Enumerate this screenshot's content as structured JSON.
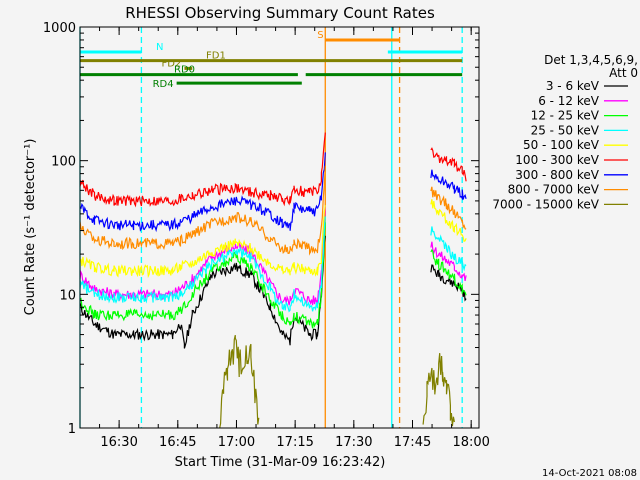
{
  "chart_data": {
    "type": "line",
    "title": "RHESSI Observing Summary Count Rates",
    "xlabel": "Start Time (31-Mar-09 16:23:42)",
    "ylabel": "Count Rate (s⁻¹ detector⁻¹)",
    "y_scale": "log",
    "ylim": [
      1,
      1000
    ],
    "xlim_minutes": [
      -3.7,
      98.3
    ],
    "x_ticks": [
      {
        "label": "16:30",
        "value": 6.3
      },
      {
        "label": "16:45",
        "value": 21.3
      },
      {
        "label": "17:00",
        "value": 36.3
      },
      {
        "label": "17:15",
        "value": 51.3
      },
      {
        "label": "17:30",
        "value": 66.3
      },
      {
        "label": "17:45",
        "value": 81.3
      },
      {
        "label": "18:00",
        "value": 96.3
      }
    ],
    "y_ticks": [
      {
        "label": "1",
        "value": 1
      },
      {
        "label": "10",
        "value": 10
      },
      {
        "label": "100",
        "value": 100
      },
      {
        "label": "1000",
        "value": 1000
      }
    ],
    "legend_header": [
      "Det 1,3,4,5,6,9,",
      "Att 0"
    ],
    "series": [
      {
        "name": "3 - 6 keV",
        "color": "#000000",
        "values": [
          [
            -3.7,
            8
          ],
          [
            0,
            6
          ],
          [
            5,
            5
          ],
          [
            10,
            5
          ],
          [
            15,
            5
          ],
          [
            20,
            5
          ],
          [
            22,
            6
          ],
          [
            23,
            4
          ],
          [
            25,
            7
          ],
          [
            30,
            14
          ],
          [
            36,
            16
          ],
          [
            40,
            14
          ],
          [
            45,
            8
          ],
          [
            48,
            5
          ],
          [
            50,
            4.5
          ],
          [
            51,
            7
          ],
          [
            55,
            5
          ],
          [
            57,
            5
          ],
          [
            58,
            10
          ],
          [
            59,
            30
          ]
        ],
        "values2": [
          [
            86,
            16
          ],
          [
            88,
            14
          ],
          [
            90,
            13
          ],
          [
            92,
            12
          ],
          [
            94,
            11
          ],
          [
            95,
            9
          ]
        ]
      },
      {
        "name": "6 - 12 keV",
        "color": "#ff00ff",
        "values": [
          [
            -3.7,
            14
          ],
          [
            0,
            11
          ],
          [
            5,
            10
          ],
          [
            10,
            10
          ],
          [
            15,
            10
          ],
          [
            20,
            10
          ],
          [
            22,
            11
          ],
          [
            25,
            13
          ],
          [
            30,
            19
          ],
          [
            36,
            23
          ],
          [
            40,
            21
          ],
          [
            45,
            12
          ],
          [
            48,
            9
          ],
          [
            50,
            9
          ],
          [
            51,
            11
          ],
          [
            55,
            9
          ],
          [
            57,
            9
          ],
          [
            58,
            15
          ],
          [
            59,
            45
          ]
        ],
        "values2": [
          [
            86,
            23
          ],
          [
            88,
            20
          ],
          [
            90,
            18
          ],
          [
            92,
            16
          ],
          [
            94,
            14
          ],
          [
            95,
            13
          ]
        ]
      },
      {
        "name": "12 - 25 keV",
        "color": "#00ff00",
        "values": [
          [
            -3.7,
            9
          ],
          [
            0,
            7
          ],
          [
            5,
            7
          ],
          [
            10,
            7
          ],
          [
            15,
            7
          ],
          [
            20,
            7
          ],
          [
            22,
            7.5
          ],
          [
            25,
            10
          ],
          [
            30,
            15
          ],
          [
            36,
            19
          ],
          [
            40,
            16
          ],
          [
            45,
            9
          ],
          [
            48,
            7
          ],
          [
            50,
            6
          ],
          [
            51,
            7
          ],
          [
            55,
            6
          ],
          [
            57,
            6
          ],
          [
            58,
            10
          ],
          [
            59,
            35
          ]
        ],
        "values2": [
          [
            86,
            20
          ],
          [
            88,
            17
          ],
          [
            90,
            15
          ],
          [
            92,
            13
          ],
          [
            94,
            11
          ],
          [
            95,
            10
          ]
        ]
      },
      {
        "name": "25 - 50 keV",
        "color": "#00ffff",
        "values": [
          [
            -3.7,
            12
          ],
          [
            0,
            10
          ],
          [
            5,
            9.5
          ],
          [
            10,
            9.5
          ],
          [
            15,
            9.5
          ],
          [
            20,
            9.5
          ],
          [
            22,
            10
          ],
          [
            25,
            12
          ],
          [
            30,
            17
          ],
          [
            36,
            21
          ],
          [
            40,
            19
          ],
          [
            45,
            11
          ],
          [
            48,
            8
          ],
          [
            50,
            8
          ],
          [
            51,
            10
          ],
          [
            55,
            8
          ],
          [
            57,
            8
          ],
          [
            58,
            12
          ],
          [
            59,
            40
          ]
        ],
        "values2": [
          [
            86,
            30
          ],
          [
            88,
            26
          ],
          [
            90,
            22
          ],
          [
            92,
            19
          ],
          [
            94,
            17
          ],
          [
            95,
            15
          ]
        ]
      },
      {
        "name": "50 - 100 keV",
        "color": "#ffff00",
        "values": [
          [
            -3.7,
            18
          ],
          [
            0,
            16
          ],
          [
            5,
            15
          ],
          [
            10,
            15
          ],
          [
            15,
            15
          ],
          [
            20,
            15
          ],
          [
            22,
            16
          ],
          [
            25,
            17
          ],
          [
            30,
            21
          ],
          [
            36,
            24
          ],
          [
            40,
            22
          ],
          [
            45,
            17
          ],
          [
            48,
            15
          ],
          [
            50,
            15
          ],
          [
            51,
            16
          ],
          [
            55,
            15
          ],
          [
            57,
            15
          ],
          [
            58,
            18
          ],
          [
            59,
            50
          ]
        ],
        "values2": [
          [
            86,
            48
          ],
          [
            88,
            42
          ],
          [
            90,
            36
          ],
          [
            92,
            32
          ],
          [
            94,
            28
          ],
          [
            95,
            26
          ]
        ]
      },
      {
        "name": "100 - 300 keV",
        "color": "#ff0000",
        "values": [
          [
            -3.7,
            70
          ],
          [
            0,
            55
          ],
          [
            5,
            50
          ],
          [
            10,
            50
          ],
          [
            15,
            50
          ],
          [
            20,
            50
          ],
          [
            22,
            52
          ],
          [
            25,
            55
          ],
          [
            30,
            60
          ],
          [
            36,
            63
          ],
          [
            40,
            58
          ],
          [
            45,
            55
          ],
          [
            48,
            52
          ],
          [
            50,
            50
          ],
          [
            51,
            60
          ],
          [
            55,
            58
          ],
          [
            57,
            58
          ],
          [
            58,
            75
          ],
          [
            59,
            150
          ]
        ],
        "values2": [
          [
            86,
            115
          ],
          [
            88,
            105
          ],
          [
            90,
            100
          ],
          [
            92,
            95
          ],
          [
            94,
            85
          ],
          [
            95,
            75
          ]
        ]
      },
      {
        "name": "300 - 800 keV",
        "color": "#0000ff",
        "values": [
          [
            -3.7,
            45
          ],
          [
            0,
            36
          ],
          [
            5,
            33
          ],
          [
            10,
            33
          ],
          [
            15,
            33
          ],
          [
            20,
            33
          ],
          [
            22,
            35
          ],
          [
            25,
            38
          ],
          [
            30,
            45
          ],
          [
            36,
            50
          ],
          [
            40,
            47
          ],
          [
            45,
            40
          ],
          [
            48,
            34
          ],
          [
            50,
            32
          ],
          [
            51,
            45
          ],
          [
            55,
            42
          ],
          [
            57,
            42
          ],
          [
            58,
            55
          ],
          [
            59,
            110
          ]
        ],
        "values2": [
          [
            86,
            80
          ],
          [
            88,
            72
          ],
          [
            90,
            68
          ],
          [
            92,
            62
          ],
          [
            94,
            56
          ],
          [
            95,
            50
          ]
        ]
      },
      {
        "name": "800 - 7000 keV",
        "color": "#ff8c00",
        "values": [
          [
            -3.7,
            32
          ],
          [
            0,
            26
          ],
          [
            5,
            24
          ],
          [
            10,
            24
          ],
          [
            15,
            24
          ],
          [
            20,
            24
          ],
          [
            22,
            25
          ],
          [
            25,
            28
          ],
          [
            30,
            34
          ],
          [
            36,
            38
          ],
          [
            40,
            35
          ],
          [
            45,
            26
          ],
          [
            48,
            22
          ],
          [
            50,
            21
          ],
          [
            51,
            24
          ],
          [
            55,
            22
          ],
          [
            57,
            22
          ],
          [
            58,
            30
          ],
          [
            59,
            90
          ]
        ],
        "values2": [
          [
            86,
            60
          ],
          [
            88,
            52
          ],
          [
            90,
            47
          ],
          [
            92,
            41
          ],
          [
            94,
            35
          ],
          [
            95,
            32
          ]
        ]
      },
      {
        "name": "7000 - 15000 keV",
        "color": "#808000",
        "values": [
          [
            32,
            1
          ],
          [
            33,
            2
          ],
          [
            34,
            3
          ],
          [
            35,
            3.5
          ],
          [
            36,
            4
          ],
          [
            37,
            3
          ],
          [
            38,
            3.5
          ],
          [
            39,
            4
          ],
          [
            40,
            3.5
          ],
          [
            41,
            2
          ],
          [
            42,
            1
          ]
        ],
        "values2": [
          [
            84,
            1
          ],
          [
            85,
            2
          ],
          [
            86,
            2.5
          ],
          [
            87,
            2
          ],
          [
            88,
            3
          ],
          [
            89,
            2.5
          ],
          [
            90,
            2
          ],
          [
            91,
            1.5
          ],
          [
            92,
            1
          ]
        ]
      }
    ],
    "flags": [
      {
        "label": "N",
        "color": "#00ffff",
        "segments": [
          [
            -3.7,
            12
          ],
          [
            75,
            94
          ]
        ],
        "level": 650
      },
      {
        "label": "S",
        "color": "#ff8c00",
        "segments": [
          [
            59,
            78
          ]
        ],
        "level": 800
      },
      {
        "label": "FD1",
        "color": "#808000",
        "segments": [
          [
            -3.7,
            94
          ]
        ],
        "level": 560
      },
      {
        "label": "FD2",
        "color": "#808000",
        "segments": [
          [
            23,
            25
          ]
        ],
        "level": 490
      },
      {
        "label": "RD0",
        "color": "#008000",
        "segments": [
          [
            -3.7,
            52
          ],
          [
            54,
            94
          ]
        ],
        "level": 440
      },
      {
        "label": "RD4",
        "color": "#008000",
        "segments": [
          [
            21,
            53
          ]
        ],
        "level": 380
      }
    ],
    "vertical_markers": [
      {
        "x": -3.7,
        "color": "#00ffff",
        "style": "solid"
      },
      {
        "x": 12,
        "color": "#00ffff",
        "style": "dashed"
      },
      {
        "x": 59,
        "color": "#ff8c00",
        "style": "solid"
      },
      {
        "x": 76,
        "color": "#00ffff",
        "style": "solid"
      },
      {
        "x": 78,
        "color": "#ff8c00",
        "style": "dashed"
      },
      {
        "x": 94,
        "color": "#00ffff",
        "style": "dashed"
      }
    ],
    "footer": "14-Oct-2021 08:08",
    "grid": false
  }
}
